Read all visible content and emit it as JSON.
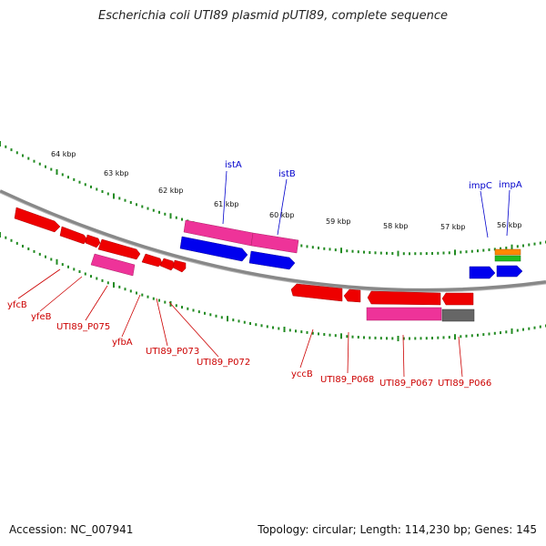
{
  "title": "Escherichia coli UTI89 plasmid pUTI89, complete sequence",
  "footer": {
    "accession": "Accession: NC_007941",
    "summary": "Topology: circular; Length: 114,230 bp; Genes: 145"
  },
  "colors": {
    "backbone": "#888888",
    "tick": "#228b22",
    "gene_red": "#ee0000",
    "gene_pink": "#ee3399",
    "gene_blue": "#0000ee",
    "gene_gray": "#666666",
    "gene_orange": "#ff8800",
    "gene_green": "#22bb22",
    "label_red": "#cc0000",
    "label_blue": "#0000cc"
  },
  "scale_labels": [
    "64 kbp",
    "63 kbp",
    "62 kbp",
    "61 kbp",
    "60 kbp",
    "59 kbp",
    "58 kbp",
    "57 kbp",
    "56 kbp"
  ],
  "gene_labels": {
    "forward": [
      "istA",
      "istB",
      "impC",
      "impA"
    ],
    "reverse": [
      "yfcB",
      "yfeB",
      "UTI89_P075",
      "yfbA",
      "UTI89_P073",
      "UTI89_P072",
      "yccB",
      "UTI89_P068",
      "UTI89_P067",
      "UTI89_P066"
    ]
  }
}
